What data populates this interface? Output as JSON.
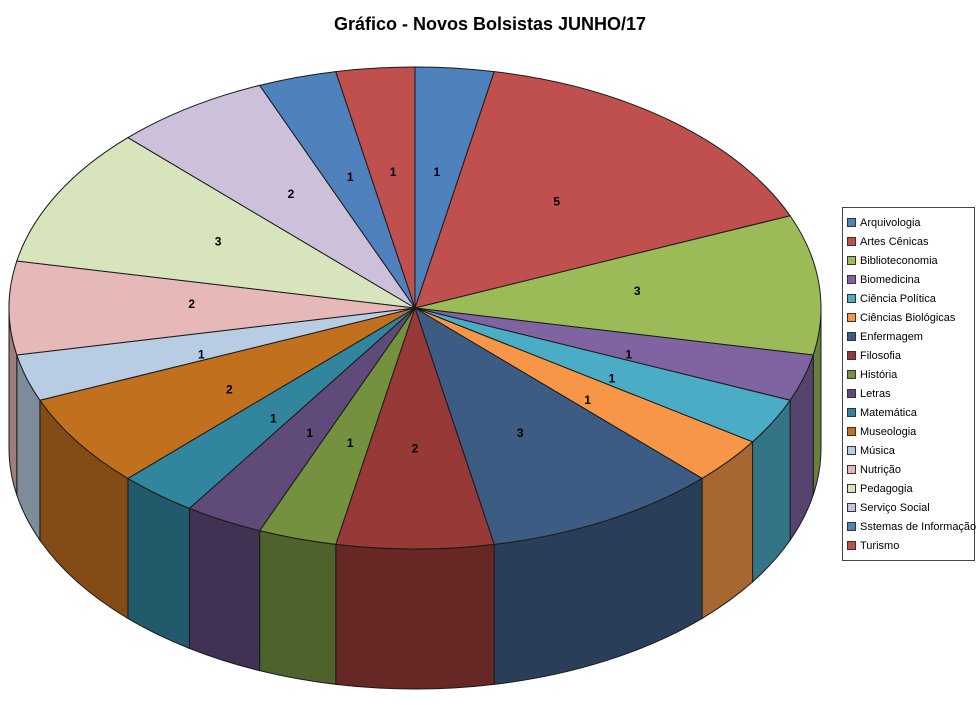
{
  "title": "Gráfico - Novos Bolsistas JUNHO/17",
  "chart_data": {
    "type": "pie",
    "style": "3d",
    "title": "Gráfico - Novos Bolsistas JUNHO/17",
    "start_angle_deg": 0,
    "direction": "clockwise",
    "total": 32,
    "legend_position": "right",
    "data_labels": "value",
    "categories": [
      "Arquivologia",
      "Artes Cênicas",
      "Biblioteconomia",
      "Biomedicina",
      "Ciência Política",
      "Ciências Biológicas",
      "Enfermagem",
      "Filosofia",
      "História",
      "Letras",
      "Matemática",
      "Museologia",
      "Música",
      "Nutrição",
      "Pedagogia",
      "Serviço Social",
      "Sstemas de Informação",
      "Turismo"
    ],
    "values": [
      1,
      5,
      3,
      1,
      1,
      1,
      3,
      2,
      1,
      1,
      1,
      2,
      1,
      2,
      3,
      2,
      1,
      1
    ],
    "colors": [
      "#4F81BD",
      "#C0504D",
      "#9BBB59",
      "#8064A2",
      "#4BACC6",
      "#F79646",
      "#3C5C83",
      "#963937",
      "#73913F",
      "#5F4A7A",
      "#31859C",
      "#C1701E",
      "#B8CCE4",
      "#E6B9B8",
      "#D7E4BC",
      "#CCC0DA",
      "#4F81BD",
      "#C0504D"
    ]
  }
}
